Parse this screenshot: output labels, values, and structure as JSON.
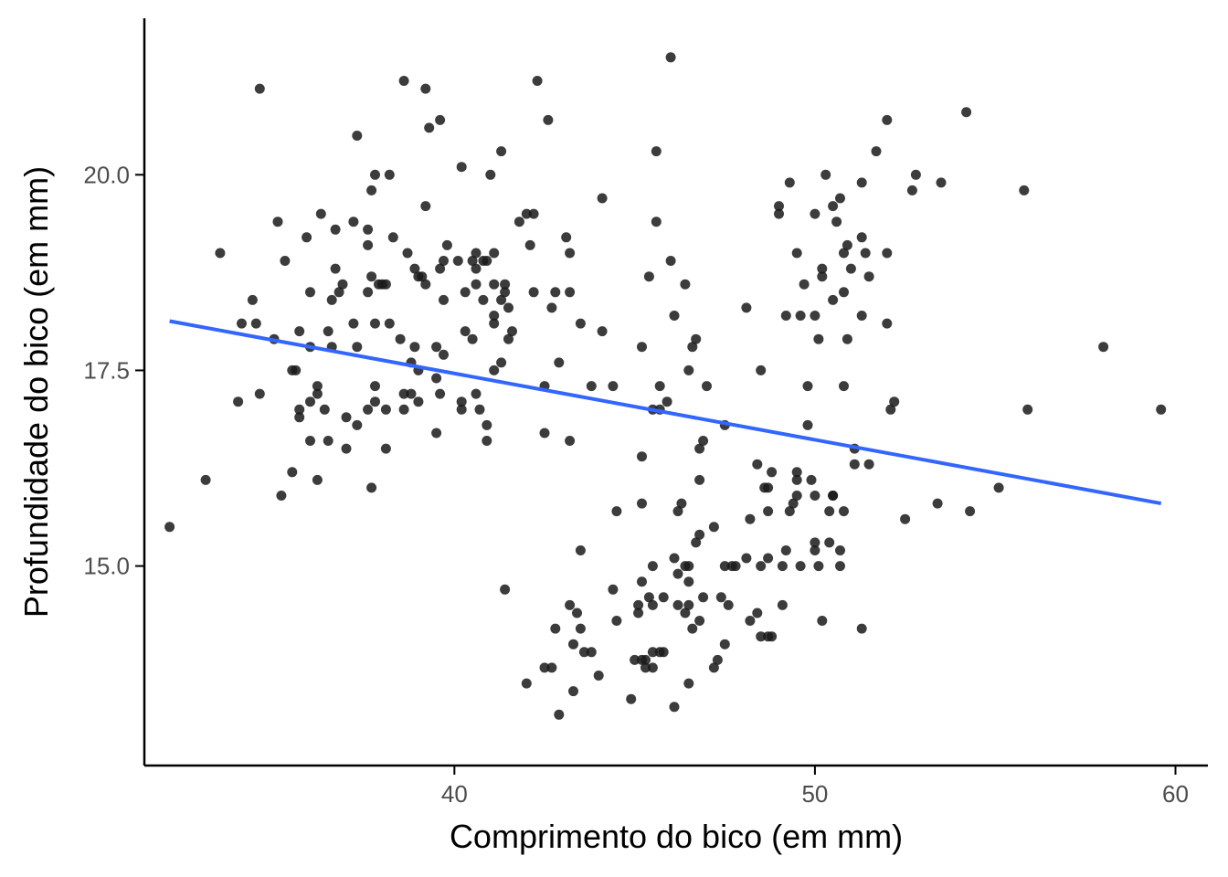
{
  "chart_data": {
    "type": "scatter",
    "title": "",
    "xlabel": "Comprimento do bico (em mm)",
    "ylabel": "Profundidade do bico (em mm)",
    "xlim": [
      31.4,
      60.9
    ],
    "ylim": [
      12.45,
      22.0
    ],
    "x_ticks": [
      40,
      50,
      60
    ],
    "x_tick_labels": [
      "40",
      "50",
      "60"
    ],
    "y_ticks": [
      15.0,
      17.5,
      20.0
    ],
    "y_tick_labels": [
      "15.0",
      "17.5",
      "20.0"
    ],
    "grid": false,
    "legend": "none",
    "point_color": "#1a1a1a",
    "trend_line": {
      "x": [
        32.1,
        59.6
      ],
      "y": [
        18.13,
        15.8
      ],
      "color": "#3366FF"
    },
    "points": [
      [
        32.1,
        15.5
      ],
      [
        33.1,
        16.1
      ],
      [
        33.5,
        19.0
      ],
      [
        34.0,
        17.1
      ],
      [
        34.1,
        18.1
      ],
      [
        34.4,
        18.4
      ],
      [
        34.5,
        18.1
      ],
      [
        34.6,
        17.2
      ],
      [
        34.6,
        21.1
      ],
      [
        35.0,
        17.9
      ],
      [
        35.1,
        19.4
      ],
      [
        35.2,
        15.9
      ],
      [
        35.3,
        18.9
      ],
      [
        35.5,
        16.2
      ],
      [
        35.5,
        17.5
      ],
      [
        35.6,
        17.5
      ],
      [
        35.7,
        16.9
      ],
      [
        35.7,
        17.0
      ],
      [
        35.7,
        18.0
      ],
      [
        35.9,
        19.2
      ],
      [
        36.0,
        16.6
      ],
      [
        36.0,
        17.1
      ],
      [
        36.0,
        17.8
      ],
      [
        36.0,
        18.5
      ],
      [
        36.2,
        16.1
      ],
      [
        36.2,
        17.2
      ],
      [
        36.2,
        17.3
      ],
      [
        36.3,
        19.5
      ],
      [
        36.4,
        17.0
      ],
      [
        36.5,
        16.6
      ],
      [
        36.5,
        18.0
      ],
      [
        36.6,
        17.8
      ],
      [
        36.6,
        18.4
      ],
      [
        36.7,
        18.8
      ],
      [
        36.7,
        19.3
      ],
      [
        36.8,
        18.5
      ],
      [
        36.9,
        18.6
      ],
      [
        37.0,
        16.5
      ],
      [
        37.0,
        16.9
      ],
      [
        37.2,
        18.1
      ],
      [
        37.2,
        19.4
      ],
      [
        37.3,
        16.8
      ],
      [
        37.3,
        17.8
      ],
      [
        37.3,
        20.5
      ],
      [
        37.6,
        17.0
      ],
      [
        37.6,
        18.5
      ],
      [
        37.6,
        19.1
      ],
      [
        37.6,
        19.3
      ],
      [
        37.7,
        16.0
      ],
      [
        37.7,
        18.7
      ],
      [
        37.7,
        19.8
      ],
      [
        37.8,
        17.1
      ],
      [
        37.8,
        17.3
      ],
      [
        37.8,
        18.1
      ],
      [
        37.8,
        20.0
      ],
      [
        37.9,
        18.6
      ],
      [
        38.0,
        18.6
      ],
      [
        38.1,
        16.5
      ],
      [
        38.1,
        17.0
      ],
      [
        38.1,
        18.6
      ],
      [
        38.2,
        18.1
      ],
      [
        38.2,
        20.0
      ],
      [
        38.3,
        19.2
      ],
      [
        38.5,
        17.9
      ],
      [
        38.6,
        17.0
      ],
      [
        38.6,
        17.2
      ],
      [
        38.6,
        21.2
      ],
      [
        38.7,
        19.0
      ],
      [
        38.8,
        17.2
      ],
      [
        38.8,
        17.6
      ],
      [
        38.9,
        17.8
      ],
      [
        38.9,
        18.8
      ],
      [
        39.0,
        17.1
      ],
      [
        39.0,
        17.5
      ],
      [
        39.0,
        18.7
      ],
      [
        39.1,
        18.7
      ],
      [
        39.2,
        18.6
      ],
      [
        39.2,
        19.6
      ],
      [
        39.2,
        21.1
      ],
      [
        39.3,
        20.6
      ],
      [
        39.5,
        16.7
      ],
      [
        39.5,
        17.4
      ],
      [
        39.5,
        17.8
      ],
      [
        39.6,
        17.2
      ],
      [
        39.6,
        18.8
      ],
      [
        39.6,
        20.7
      ],
      [
        39.7,
        17.7
      ],
      [
        39.7,
        18.4
      ],
      [
        39.7,
        18.9
      ],
      [
        39.8,
        19.1
      ],
      [
        40.1,
        18.9
      ],
      [
        40.2,
        17.0
      ],
      [
        40.2,
        17.1
      ],
      [
        40.2,
        20.1
      ],
      [
        40.3,
        18.0
      ],
      [
        40.3,
        18.5
      ],
      [
        40.5,
        17.9
      ],
      [
        40.5,
        18.9
      ],
      [
        40.6,
        17.2
      ],
      [
        40.6,
        18.6
      ],
      [
        40.6,
        18.8
      ],
      [
        40.6,
        19.0
      ],
      [
        40.7,
        17.0
      ],
      [
        40.8,
        18.4
      ],
      [
        40.8,
        18.9
      ],
      [
        40.9,
        16.6
      ],
      [
        40.9,
        16.8
      ],
      [
        40.9,
        18.9
      ],
      [
        41.0,
        20.0
      ],
      [
        41.1,
        17.5
      ],
      [
        41.1,
        18.1
      ],
      [
        41.1,
        18.2
      ],
      [
        41.1,
        18.6
      ],
      [
        41.1,
        19.0
      ],
      [
        41.3,
        17.6
      ],
      [
        41.3,
        18.4
      ],
      [
        41.3,
        20.3
      ],
      [
        41.4,
        18.5
      ],
      [
        41.4,
        18.6
      ],
      [
        41.5,
        17.9
      ],
      [
        41.5,
        18.3
      ],
      [
        41.6,
        18.0
      ],
      [
        41.8,
        19.4
      ],
      [
        42.0,
        19.5
      ],
      [
        42.1,
        19.1
      ],
      [
        42.2,
        18.5
      ],
      [
        42.2,
        19.5
      ],
      [
        42.3,
        21.2
      ],
      [
        42.5,
        16.7
      ],
      [
        42.5,
        17.3
      ],
      [
        42.6,
        20.7
      ],
      [
        42.7,
        18.3
      ],
      [
        42.8,
        18.5
      ],
      [
        42.9,
        17.6
      ],
      [
        43.1,
        19.2
      ],
      [
        43.2,
        16.6
      ],
      [
        43.2,
        18.5
      ],
      [
        43.2,
        19.0
      ],
      [
        43.5,
        18.1
      ],
      [
        44.1,
        18.0
      ],
      [
        44.1,
        19.7
      ],
      [
        44.4,
        17.3
      ],
      [
        45.2,
        17.8
      ],
      [
        45.4,
        18.7
      ],
      [
        45.5,
        17.0
      ],
      [
        45.6,
        19.4
      ],
      [
        45.6,
        20.3
      ],
      [
        45.7,
        17.0
      ],
      [
        45.7,
        17.3
      ],
      [
        45.9,
        17.1
      ],
      [
        46.0,
        18.9
      ],
      [
        46.1,
        18.2
      ],
      [
        46.4,
        18.6
      ],
      [
        46.5,
        17.5
      ],
      [
        46.6,
        17.8
      ],
      [
        46.7,
        17.9
      ],
      [
        46.8,
        16.5
      ],
      [
        46.9,
        16.6
      ],
      [
        47.0,
        17.3
      ],
      [
        47.5,
        16.8
      ],
      [
        48.1,
        18.3
      ],
      [
        48.5,
        17.5
      ],
      [
        49.0,
        19.6
      ],
      [
        49.0,
        19.5
      ],
      [
        49.2,
        18.2
      ],
      [
        49.3,
        19.9
      ],
      [
        49.5,
        19.0
      ],
      [
        49.6,
        18.2
      ],
      [
        49.7,
        18.6
      ],
      [
        49.8,
        17.3
      ],
      [
        49.8,
        16.8
      ],
      [
        50.0,
        18.2
      ],
      [
        50.0,
        19.5
      ],
      [
        50.1,
        17.9
      ],
      [
        50.2,
        18.7
      ],
      [
        50.2,
        18.8
      ],
      [
        50.3,
        20.0
      ],
      [
        50.5,
        18.4
      ],
      [
        50.5,
        19.6
      ],
      [
        50.6,
        19.4
      ],
      [
        50.7,
        19.7
      ],
      [
        50.8,
        18.5
      ],
      [
        50.8,
        17.3
      ],
      [
        50.8,
        19.0
      ],
      [
        50.9,
        19.1
      ],
      [
        50.9,
        17.9
      ],
      [
        51.0,
        18.8
      ],
      [
        51.3,
        19.9
      ],
      [
        51.3,
        18.2
      ],
      [
        51.3,
        19.2
      ],
      [
        51.4,
        19.0
      ],
      [
        51.5,
        18.7
      ],
      [
        51.7,
        20.3
      ],
      [
        52.0,
        18.1
      ],
      [
        52.0,
        19.0
      ],
      [
        52.0,
        20.7
      ],
      [
        52.7,
        19.8
      ],
      [
        52.8,
        20.0
      ],
      [
        53.5,
        19.9
      ],
      [
        55.8,
        19.8
      ],
      [
        41.4,
        14.7
      ],
      [
        42.0,
        13.5
      ],
      [
        42.5,
        13.7
      ],
      [
        42.7,
        13.7
      ],
      [
        42.8,
        14.2
      ],
      [
        42.9,
        13.1
      ],
      [
        43.2,
        14.5
      ],
      [
        43.3,
        13.4
      ],
      [
        43.3,
        14.0
      ],
      [
        43.4,
        14.4
      ],
      [
        43.5,
        14.2
      ],
      [
        43.5,
        15.2
      ],
      [
        43.6,
        13.9
      ],
      [
        43.8,
        13.9
      ],
      [
        44.0,
        13.6
      ],
      [
        44.4,
        14.7
      ],
      [
        44.5,
        14.3
      ],
      [
        44.5,
        15.7
      ],
      [
        44.9,
        13.3
      ],
      [
        45.0,
        13.8
      ],
      [
        45.1,
        14.5
      ],
      [
        45.1,
        14.4
      ],
      [
        45.2,
        13.8
      ],
      [
        45.2,
        14.8
      ],
      [
        45.2,
        15.8
      ],
      [
        45.2,
        16.4
      ],
      [
        45.3,
        13.8
      ],
      [
        45.3,
        13.7
      ],
      [
        45.4,
        14.6
      ],
      [
        45.5,
        13.7
      ],
      [
        45.5,
        14.5
      ],
      [
        45.5,
        15.0
      ],
      [
        45.5,
        13.9
      ],
      [
        45.7,
        13.9
      ],
      [
        45.8,
        14.6
      ],
      [
        45.8,
        13.9
      ],
      [
        46.1,
        13.2
      ],
      [
        46.1,
        15.1
      ],
      [
        46.2,
        14.5
      ],
      [
        46.2,
        14.9
      ],
      [
        46.2,
        15.7
      ],
      [
        46.3,
        15.8
      ],
      [
        46.4,
        14.4
      ],
      [
        46.4,
        15.0
      ],
      [
        46.5,
        13.5
      ],
      [
        46.5,
        14.5
      ],
      [
        46.5,
        14.8
      ],
      [
        46.5,
        15.0
      ],
      [
        46.6,
        14.2
      ],
      [
        46.7,
        15.3
      ],
      [
        46.8,
        14.3
      ],
      [
        46.8,
        15.4
      ],
      [
        46.8,
        16.1
      ],
      [
        46.9,
        14.6
      ],
      [
        47.2,
        13.7
      ],
      [
        47.2,
        15.5
      ],
      [
        47.3,
        13.8
      ],
      [
        47.4,
        14.6
      ],
      [
        47.5,
        14.0
      ],
      [
        47.5,
        15.0
      ],
      [
        47.6,
        14.5
      ],
      [
        47.7,
        15.0
      ],
      [
        47.8,
        15.0
      ],
      [
        48.1,
        15.1
      ],
      [
        48.2,
        14.3
      ],
      [
        48.2,
        15.6
      ],
      [
        48.4,
        14.4
      ],
      [
        48.4,
        16.3
      ],
      [
        48.5,
        14.1
      ],
      [
        48.5,
        15.0
      ],
      [
        48.6,
        16.0
      ],
      [
        48.7,
        14.1
      ],
      [
        48.7,
        15.1
      ],
      [
        48.7,
        15.7
      ],
      [
        48.7,
        16.0
      ],
      [
        48.8,
        14.1
      ],
      [
        48.8,
        16.2
      ],
      [
        49.1,
        14.5
      ],
      [
        49.1,
        15.0
      ],
      [
        49.2,
        15.2
      ],
      [
        49.3,
        15.7
      ],
      [
        49.4,
        15.8
      ],
      [
        49.5,
        15.9
      ],
      [
        49.5,
        16.1
      ],
      [
        49.5,
        16.2
      ],
      [
        49.6,
        15.0
      ],
      [
        49.9,
        16.1
      ],
      [
        50.0,
        15.2
      ],
      [
        50.0,
        15.3
      ],
      [
        50.0,
        15.9
      ],
      [
        50.1,
        15.0
      ],
      [
        50.2,
        14.3
      ],
      [
        50.4,
        15.3
      ],
      [
        50.4,
        15.7
      ],
      [
        50.5,
        15.9
      ],
      [
        50.5,
        15.9
      ],
      [
        50.7,
        15.0
      ],
      [
        50.7,
        15.2
      ],
      [
        50.8,
        15.7
      ],
      [
        51.1,
        16.3
      ],
      [
        51.1,
        16.5
      ],
      [
        51.3,
        14.2
      ],
      [
        51.5,
        16.3
      ],
      [
        52.1,
        17.0
      ],
      [
        52.2,
        17.1
      ],
      [
        52.5,
        15.6
      ],
      [
        53.4,
        15.8
      ],
      [
        54.3,
        15.7
      ],
      [
        55.1,
        16.0
      ],
      [
        55.9,
        17.0
      ],
      [
        59.6,
        17.0
      ],
      [
        58.0,
        17.8
      ],
      [
        54.2,
        20.8
      ],
      [
        46.0,
        21.5
      ],
      [
        43.8,
        17.3
      ]
    ]
  }
}
